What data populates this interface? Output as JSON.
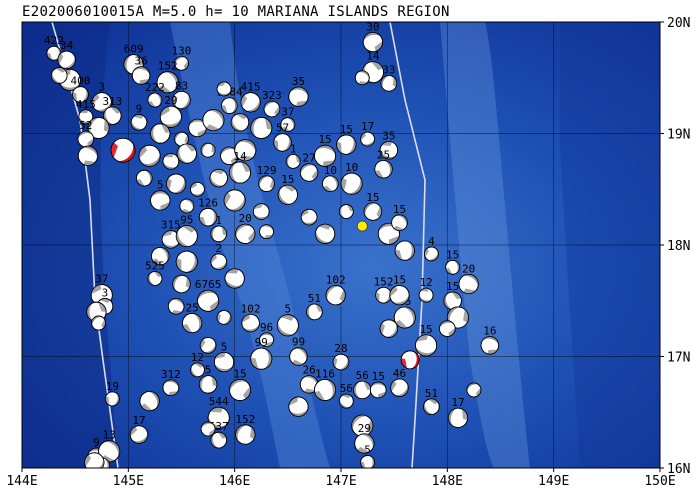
{
  "title": "E202006010015A  M=5.0  h= 10 MARIANA ISLANDS REGION",
  "map": {
    "lon_range": [
      144,
      150
    ],
    "lat_range": [
      16,
      20
    ],
    "lon_ticks": [
      "144E",
      "145E",
      "146E",
      "147E",
      "148E",
      "149E",
      "150E"
    ],
    "lat_ticks": [
      "20N",
      "19N",
      "18N",
      "17N",
      "16N"
    ],
    "grid": true,
    "colors": {
      "ocean_deep": "#0a2a8c",
      "ocean_mid": "#1e50b4",
      "ocean_shallow": "#4f86d6",
      "plate_boundary": "#d8dde8",
      "compression": "#9a9a9a",
      "highlight_red": "#e8101a",
      "epicenter": "#ffee00"
    }
  },
  "main_event": {
    "lon": 144.95,
    "lat": 18.85,
    "label": ""
  },
  "second_event": {
    "lon": 147.65,
    "lat": 16.97,
    "label": ""
  },
  "epicenter": {
    "lon": 147.2,
    "lat": 18.17
  },
  "events": [
    {
      "lon": 144.3,
      "lat": 19.72,
      "label": "422"
    },
    {
      "lon": 144.42,
      "lat": 19.66,
      "label": "34"
    },
    {
      "lon": 144.45,
      "lat": 19.48,
      "label": ""
    },
    {
      "lon": 144.35,
      "lat": 19.52,
      "label": ""
    },
    {
      "lon": 145.05,
      "lat": 19.62,
      "label": "609"
    },
    {
      "lon": 145.5,
      "lat": 19.63,
      "label": "130"
    },
    {
      "lon": 145.12,
      "lat": 19.52,
      "label": "36"
    },
    {
      "lon": 145.37,
      "lat": 19.46,
      "label": "152"
    },
    {
      "lon": 144.55,
      "lat": 19.35,
      "label": "400"
    },
    {
      "lon": 144.75,
      "lat": 19.28,
      "label": "3"
    },
    {
      "lon": 144.6,
      "lat": 19.15,
      "label": "415"
    },
    {
      "lon": 144.85,
      "lat": 19.16,
      "label": "313"
    },
    {
      "lon": 144.72,
      "lat": 19.05,
      "label": ""
    },
    {
      "lon": 144.6,
      "lat": 18.95,
      "label": "52"
    },
    {
      "lon": 144.62,
      "lat": 18.8,
      "label": ""
    },
    {
      "lon": 145.25,
      "lat": 19.3,
      "label": "222"
    },
    {
      "lon": 145.5,
      "lat": 19.3,
      "label": "83"
    },
    {
      "lon": 145.4,
      "lat": 19.15,
      "label": "29"
    },
    {
      "lon": 145.1,
      "lat": 19.1,
      "label": "9"
    },
    {
      "lon": 145.3,
      "lat": 19.0,
      "label": ""
    },
    {
      "lon": 145.5,
      "lat": 18.95,
      "label": ""
    },
    {
      "lon": 145.65,
      "lat": 19.05,
      "label": ""
    },
    {
      "lon": 145.8,
      "lat": 19.12,
      "label": ""
    },
    {
      "lon": 145.95,
      "lat": 19.25,
      "label": "1184"
    },
    {
      "lon": 146.15,
      "lat": 19.28,
      "label": "415"
    },
    {
      "lon": 145.9,
      "lat": 19.4,
      "label": ""
    },
    {
      "lon": 146.05,
      "lat": 19.1,
      "label": ""
    },
    {
      "lon": 146.25,
      "lat": 19.05,
      "label": ""
    },
    {
      "lon": 146.35,
      "lat": 19.22,
      "label": "323"
    },
    {
      "lon": 146.6,
      "lat": 19.33,
      "label": "35"
    },
    {
      "lon": 146.5,
      "lat": 19.08,
      "label": "37"
    },
    {
      "lon": 146.45,
      "lat": 18.92,
      "label": "57"
    },
    {
      "lon": 145.2,
      "lat": 18.8,
      "label": ""
    },
    {
      "lon": 145.4,
      "lat": 18.75,
      "label": ""
    },
    {
      "lon": 145.55,
      "lat": 18.82,
      "label": ""
    },
    {
      "lon": 145.75,
      "lat": 18.85,
      "label": ""
    },
    {
      "lon": 145.95,
      "lat": 18.8,
      "label": ""
    },
    {
      "lon": 146.1,
      "lat": 18.85,
      "label": ""
    },
    {
      "lon": 145.15,
      "lat": 18.6,
      "label": ""
    },
    {
      "lon": 145.45,
      "lat": 18.55,
      "label": ""
    },
    {
      "lon": 145.65,
      "lat": 18.5,
      "label": ""
    },
    {
      "lon": 145.85,
      "lat": 18.6,
      "label": ""
    },
    {
      "lon": 146.05,
      "lat": 18.65,
      "label": "14"
    },
    {
      "lon": 146.3,
      "lat": 18.55,
      "label": "129"
    },
    {
      "lon": 145.3,
      "lat": 18.4,
      "label": "5"
    },
    {
      "lon": 145.55,
      "lat": 18.35,
      "label": ""
    },
    {
      "lon": 145.75,
      "lat": 18.25,
      "label": "126"
    },
    {
      "lon": 146.0,
      "lat": 18.4,
      "label": ""
    },
    {
      "lon": 146.25,
      "lat": 18.3,
      "label": ""
    },
    {
      "lon": 146.5,
      "lat": 18.45,
      "label": "15"
    },
    {
      "lon": 146.55,
      "lat": 18.75,
      "label": "1"
    },
    {
      "lon": 146.7,
      "lat": 18.65,
      "label": "27"
    },
    {
      "lon": 146.85,
      "lat": 18.8,
      "label": "15"
    },
    {
      "lon": 146.9,
      "lat": 18.55,
      "label": "10"
    },
    {
      "lon": 147.05,
      "lat": 18.9,
      "label": "15"
    },
    {
      "lon": 147.25,
      "lat": 18.95,
      "label": "17"
    },
    {
      "lon": 147.45,
      "lat": 18.85,
      "label": "35"
    },
    {
      "lon": 147.3,
      "lat": 19.55,
      "label": "14"
    },
    {
      "lon": 147.45,
      "lat": 19.45,
      "label": "33"
    },
    {
      "lon": 147.3,
      "lat": 19.82,
      "label": "30"
    },
    {
      "lon": 147.2,
      "lat": 19.5,
      "label": ""
    },
    {
      "lon": 147.4,
      "lat": 18.68,
      "label": "25"
    },
    {
      "lon": 147.1,
      "lat": 18.55,
      "label": "10"
    },
    {
      "lon": 146.7,
      "lat": 18.25,
      "label": ""
    },
    {
      "lon": 146.85,
      "lat": 18.1,
      "label": ""
    },
    {
      "lon": 147.05,
      "lat": 18.3,
      "label": ""
    },
    {
      "lon": 147.3,
      "lat": 18.3,
      "label": "15"
    },
    {
      "lon": 147.45,
      "lat": 18.1,
      "label": ""
    },
    {
      "lon": 147.55,
      "lat": 18.2,
      "label": "15"
    },
    {
      "lon": 147.6,
      "lat": 17.95,
      "label": ""
    },
    {
      "lon": 147.85,
      "lat": 17.92,
      "label": "4"
    },
    {
      "lon": 145.4,
      "lat": 18.05,
      "label": "315"
    },
    {
      "lon": 145.55,
      "lat": 18.08,
      "label": "95"
    },
    {
      "lon": 145.85,
      "lat": 18.1,
      "label": "1"
    },
    {
      "lon": 146.1,
      "lat": 18.1,
      "label": "20"
    },
    {
      "lon": 146.3,
      "lat": 18.12,
      "label": ""
    },
    {
      "lon": 145.3,
      "lat": 17.9,
      "label": ""
    },
    {
      "lon": 145.55,
      "lat": 17.85,
      "label": ""
    },
    {
      "lon": 145.85,
      "lat": 17.85,
      "label": "2"
    },
    {
      "lon": 146.0,
      "lat": 17.7,
      "label": ""
    },
    {
      "lon": 145.25,
      "lat": 17.7,
      "label": "525"
    },
    {
      "lon": 145.5,
      "lat": 17.65,
      "label": ""
    },
    {
      "lon": 145.75,
      "lat": 17.5,
      "label": "6765"
    },
    {
      "lon": 145.45,
      "lat": 17.45,
      "label": ""
    },
    {
      "lon": 145.6,
      "lat": 17.3,
      "label": "25"
    },
    {
      "lon": 145.9,
      "lat": 17.35,
      "label": ""
    },
    {
      "lon": 146.15,
      "lat": 17.3,
      "label": "102"
    },
    {
      "lon": 146.5,
      "lat": 17.28,
      "label": "5"
    },
    {
      "lon": 146.75,
      "lat": 17.4,
      "label": "51"
    },
    {
      "lon": 146.95,
      "lat": 17.55,
      "label": "102"
    },
    {
      "lon": 146.3,
      "lat": 17.15,
      "label": "96"
    },
    {
      "lon": 146.6,
      "lat": 17.0,
      "label": "99"
    },
    {
      "lon": 146.25,
      "lat": 16.98,
      "label": "99"
    },
    {
      "lon": 145.75,
      "lat": 17.1,
      "label": ""
    },
    {
      "lon": 145.9,
      "lat": 16.95,
      "label": "5"
    },
    {
      "lon": 145.65,
      "lat": 16.88,
      "label": "12"
    },
    {
      "lon": 145.75,
      "lat": 16.75,
      "label": "5"
    },
    {
      "lon": 146.05,
      "lat": 16.7,
      "label": "15"
    },
    {
      "lon": 145.4,
      "lat": 16.72,
      "label": "312"
    },
    {
      "lon": 145.2,
      "lat": 16.6,
      "label": ""
    },
    {
      "lon": 144.85,
      "lat": 16.62,
      "label": "19"
    },
    {
      "lon": 145.1,
      "lat": 16.3,
      "label": "17"
    },
    {
      "lon": 145.85,
      "lat": 16.45,
      "label": "544"
    },
    {
      "lon": 145.85,
      "lat": 16.25,
      "label": "537"
    },
    {
      "lon": 146.1,
      "lat": 16.3,
      "label": "152"
    },
    {
      "lon": 145.75,
      "lat": 16.35,
      "label": ""
    },
    {
      "lon": 146.7,
      "lat": 16.75,
      "label": "26"
    },
    {
      "lon": 146.85,
      "lat": 16.7,
      "label": "116"
    },
    {
      "lon": 147.0,
      "lat": 16.95,
      "label": "28"
    },
    {
      "lon": 146.6,
      "lat": 16.55,
      "label": ""
    },
    {
      "lon": 147.05,
      "lat": 16.6,
      "label": "56"
    },
    {
      "lon": 147.2,
      "lat": 16.7,
      "label": "56"
    },
    {
      "lon": 147.2,
      "lat": 16.38,
      "label": ""
    },
    {
      "lon": 147.35,
      "lat": 16.7,
      "label": "15"
    },
    {
      "lon": 147.22,
      "lat": 16.22,
      "label": "29"
    },
    {
      "lon": 147.25,
      "lat": 16.05,
      "label": "5"
    },
    {
      "lon": 147.55,
      "lat": 16.72,
      "label": "46"
    },
    {
      "lon": 147.8,
      "lat": 17.1,
      "label": "15"
    },
    {
      "lon": 147.85,
      "lat": 16.55,
      "label": "51"
    },
    {
      "lon": 148.1,
      "lat": 16.45,
      "label": "17"
    },
    {
      "lon": 148.25,
      "lat": 16.7,
      "label": ""
    },
    {
      "lon": 148.4,
      "lat": 17.1,
      "label": "16"
    },
    {
      "lon": 147.6,
      "lat": 17.35,
      "label": "25"
    },
    {
      "lon": 147.4,
      "lat": 17.55,
      "label": "152"
    },
    {
      "lon": 147.55,
      "lat": 17.55,
      "label": "15"
    },
    {
      "lon": 147.8,
      "lat": 17.55,
      "label": "12"
    },
    {
      "lon": 148.05,
      "lat": 17.5,
      "label": "15"
    },
    {
      "lon": 148.1,
      "lat": 17.35,
      "label": ""
    },
    {
      "lon": 148.0,
      "lat": 17.25,
      "label": ""
    },
    {
      "lon": 148.2,
      "lat": 17.65,
      "label": "20"
    },
    {
      "lon": 148.05,
      "lat": 17.8,
      "label": "15"
    },
    {
      "lon": 147.45,
      "lat": 17.25,
      "label": ""
    },
    {
      "lon": 144.75,
      "lat": 17.55,
      "label": "37"
    },
    {
      "lon": 144.78,
      "lat": 17.45,
      "label": "3"
    },
    {
      "lon": 144.7,
      "lat": 17.4,
      "label": ""
    },
    {
      "lon": 144.72,
      "lat": 17.3,
      "label": ""
    },
    {
      "lon": 144.7,
      "lat": 16.1,
      "label": "9"
    },
    {
      "lon": 144.82,
      "lat": 16.15,
      "label": "13"
    },
    {
      "lon": 144.75,
      "lat": 16.02,
      "label": ""
    },
    {
      "lon": 144.68,
      "lat": 16.05,
      "label": ""
    }
  ]
}
